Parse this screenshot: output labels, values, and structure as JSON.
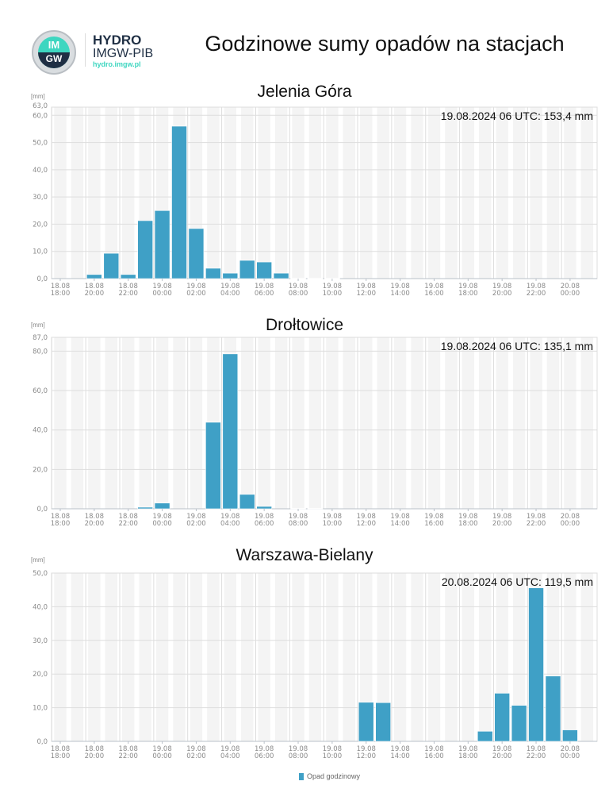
{
  "header": {
    "logo": {
      "badge_top": "IM",
      "badge_bottom": "GW",
      "brand": "HYDRO",
      "org": "IMGW-PIB",
      "url": "hydro.imgw.pl"
    },
    "title": "Godzinowe sumy opadów na stacjach"
  },
  "colors": {
    "bar": "#3fa0c6",
    "band": "#f4f4f4",
    "grid": "#dddddd",
    "axis_text": "#8a8a8a",
    "brand_teal": "#3ed6c0",
    "brand_navy": "#1f2f44"
  },
  "legend": {
    "label": "Opad godzinowy"
  },
  "chart_data": [
    {
      "type": "bar",
      "title": "Jelenia Góra",
      "ylabel": "[mm]",
      "ylim": [
        0,
        63
      ],
      "y_ticks": [
        "0,0",
        "10,0",
        "20,0",
        "30,0",
        "40,0",
        "50,0",
        "60,0",
        "63,0"
      ],
      "y_tick_values": [
        0,
        10,
        20,
        30,
        40,
        50,
        60,
        63
      ],
      "annotation": "19.08.2024 06 UTC: 153,4 mm",
      "x_ticks": [
        "18.08 18:00",
        "18.08 20:00",
        "18.08 22:00",
        "19.08 00:00",
        "19.08 02:00",
        "19.08 04:00",
        "19.08 06:00",
        "19.08 08:00",
        "19.08 10:00",
        "19.08 12:00",
        "19.08 14:00",
        "19.08 16:00",
        "19.08 18:00",
        "19.08 20:00",
        "19.08 22:00",
        "20.08 00:00"
      ],
      "categories": [
        "18.08 18:00",
        "18.08 19:00",
        "18.08 20:00",
        "18.08 21:00",
        "18.08 22:00",
        "18.08 23:00",
        "19.08 00:00",
        "19.08 01:00",
        "19.08 02:00",
        "19.08 03:00",
        "19.08 04:00",
        "19.08 05:00",
        "19.08 06:00",
        "19.08 07:00",
        "19.08 08:00",
        "19.08 09:00",
        "19.08 10:00",
        "19.08 11:00",
        "19.08 12:00",
        "19.08 13:00",
        "19.08 14:00",
        "19.08 15:00",
        "19.08 16:00",
        "19.08 17:00",
        "19.08 18:00",
        "19.08 19:00",
        "19.08 20:00",
        "19.08 21:00",
        "19.08 22:00",
        "19.08 23:00",
        "20.08 00:00",
        "20.08 01:00"
      ],
      "series": [
        {
          "name": "Opad godzinowy",
          "values": [
            0,
            0,
            1.5,
            9.3,
            1.5,
            21.3,
            25.0,
            56.0,
            18.4,
            3.8,
            2.0,
            6.7,
            6.1,
            2.0,
            0.1,
            0.1,
            0.1,
            0,
            0,
            0,
            0,
            0,
            0,
            0,
            0,
            0,
            0,
            0,
            0,
            0,
            0,
            0
          ]
        }
      ]
    },
    {
      "type": "bar",
      "title": "Drołtowice",
      "ylabel": "[mm]",
      "ylim": [
        0,
        87
      ],
      "y_ticks": [
        "0,0",
        "20,0",
        "40,0",
        "60,0",
        "80,0",
        "87,0"
      ],
      "y_tick_values": [
        0,
        20,
        40,
        60,
        80,
        87
      ],
      "annotation": "19.08.2024 06 UTC: 135,1 mm",
      "x_ticks": [
        "18.08 18:00",
        "18.08 20:00",
        "18.08 22:00",
        "19.08 00:00",
        "19.08 02:00",
        "19.08 04:00",
        "19.08 06:00",
        "19.08 08:00",
        "19.08 10:00",
        "19.08 12:00",
        "19.08 14:00",
        "19.08 16:00",
        "19.08 18:00",
        "19.08 20:00",
        "19.08 22:00",
        "20.08 00:00"
      ],
      "categories": [
        "18.08 18:00",
        "18.08 19:00",
        "18.08 20:00",
        "18.08 21:00",
        "18.08 22:00",
        "18.08 23:00",
        "19.08 00:00",
        "19.08 01:00",
        "19.08 02:00",
        "19.08 03:00",
        "19.08 04:00",
        "19.08 05:00",
        "19.08 06:00",
        "19.08 07:00",
        "19.08 08:00",
        "19.08 09:00",
        "19.08 10:00",
        "19.08 11:00",
        "19.08 12:00",
        "19.08 13:00",
        "19.08 14:00",
        "19.08 15:00",
        "19.08 16:00",
        "19.08 17:00",
        "19.08 18:00",
        "19.08 19:00",
        "19.08 20:00",
        "19.08 21:00",
        "19.08 22:00",
        "19.08 23:00",
        "20.08 00:00",
        "20.08 01:00"
      ],
      "series": [
        {
          "name": "Opad godzinowy",
          "values": [
            0,
            0,
            0,
            0,
            0,
            0.8,
            2.9,
            0,
            0,
            43.9,
            78.6,
            7.3,
            1.2,
            0,
            0.2,
            0.2,
            0,
            0,
            0,
            0,
            0,
            0,
            0,
            0,
            0,
            0,
            0,
            0,
            0,
            0,
            0,
            0
          ]
        }
      ]
    },
    {
      "type": "bar",
      "title": "Warszawa-Bielany",
      "ylabel": "[mm]",
      "ylim": [
        0,
        50
      ],
      "y_ticks": [
        "0,0",
        "10,0",
        "20,0",
        "30,0",
        "40,0",
        "50,0"
      ],
      "y_tick_values": [
        0,
        10,
        20,
        30,
        40,
        50
      ],
      "annotation": "20.08.2024 06 UTC: 119,5 mm",
      "x_ticks": [
        "18.08 18:00",
        "18.08 20:00",
        "18.08 22:00",
        "19.08 00:00",
        "19.08 02:00",
        "19.08 04:00",
        "19.08 06:00",
        "19.08 08:00",
        "19.08 10:00",
        "19.08 12:00",
        "19.08 14:00",
        "19.08 16:00",
        "19.08 18:00",
        "19.08 20:00",
        "19.08 22:00",
        "20.08 00:00"
      ],
      "categories": [
        "18.08 18:00",
        "18.08 19:00",
        "18.08 20:00",
        "18.08 21:00",
        "18.08 22:00",
        "18.08 23:00",
        "19.08 00:00",
        "19.08 01:00",
        "19.08 02:00",
        "19.08 03:00",
        "19.08 04:00",
        "19.08 05:00",
        "19.08 06:00",
        "19.08 07:00",
        "19.08 08:00",
        "19.08 09:00",
        "19.08 10:00",
        "19.08 11:00",
        "19.08 12:00",
        "19.08 13:00",
        "19.08 14:00",
        "19.08 15:00",
        "19.08 16:00",
        "19.08 17:00",
        "19.08 18:00",
        "19.08 19:00",
        "19.08 20:00",
        "19.08 21:00",
        "19.08 22:00",
        "19.08 23:00",
        "20.08 00:00",
        "20.08 01:00"
      ],
      "series": [
        {
          "name": "Opad godzinowy",
          "values": [
            0,
            0,
            0,
            0,
            0,
            0,
            0,
            0,
            0,
            0,
            0,
            0,
            0,
            0,
            0,
            0,
            0,
            0,
            11.6,
            11.5,
            0,
            0,
            0,
            0,
            0,
            3.0,
            14.3,
            10.7,
            45.6,
            19.4,
            3.4,
            0
          ]
        }
      ]
    }
  ]
}
